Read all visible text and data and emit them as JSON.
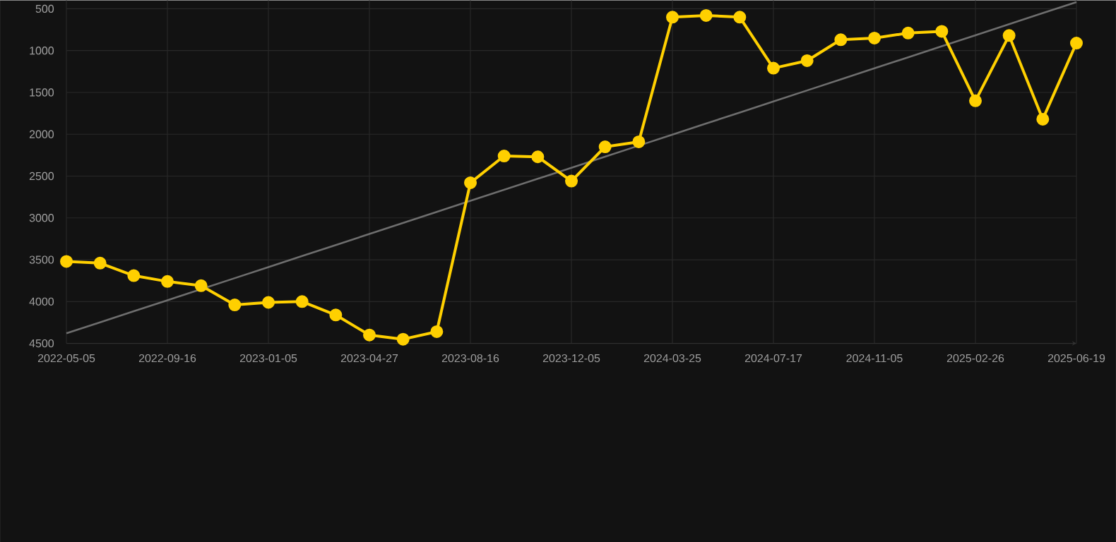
{
  "chart_data": {
    "type": "line",
    "categories": [
      "2022-05-05",
      null,
      null,
      "2022-09-16",
      null,
      null,
      "2023-01-05",
      null,
      null,
      "2023-04-27",
      null,
      null,
      "2023-08-16",
      null,
      null,
      "2023-12-05",
      null,
      null,
      "2024-03-25",
      null,
      null,
      "2024-07-17",
      null,
      null,
      "2024-11-05",
      null,
      null,
      "2025-02-26",
      null,
      null,
      "2025-06-19"
    ],
    "series": [
      {
        "color": "#ffd000",
        "marker": "circle",
        "values": [
          3520,
          3540,
          3690,
          3760,
          3810,
          4040,
          4010,
          4000,
          4160,
          4400,
          4450,
          4360,
          2580,
          2260,
          2270,
          2560,
          2150,
          2090,
          600,
          580,
          600,
          1210,
          1120,
          870,
          850,
          790,
          770,
          1600,
          820,
          1820,
          910
        ]
      },
      {
        "color": "#6e6e6e",
        "marker": "none",
        "values": [
          4380,
          4248,
          4116,
          3984,
          3852,
          3720,
          3588,
          3456,
          3324,
          3192,
          3060,
          2928,
          2796,
          2664,
          2532,
          2400,
          2268,
          2136,
          2004,
          1872,
          1740,
          1608,
          1476,
          1344,
          1212,
          1080,
          948,
          816,
          684,
          552,
          420
        ]
      }
    ],
    "ylim": [
      4500,
      400
    ],
    "yticks": [
      500,
      1000,
      1500,
      2000,
      2500,
      3000,
      3500,
      4000,
      4500
    ],
    "grid": true
  }
}
